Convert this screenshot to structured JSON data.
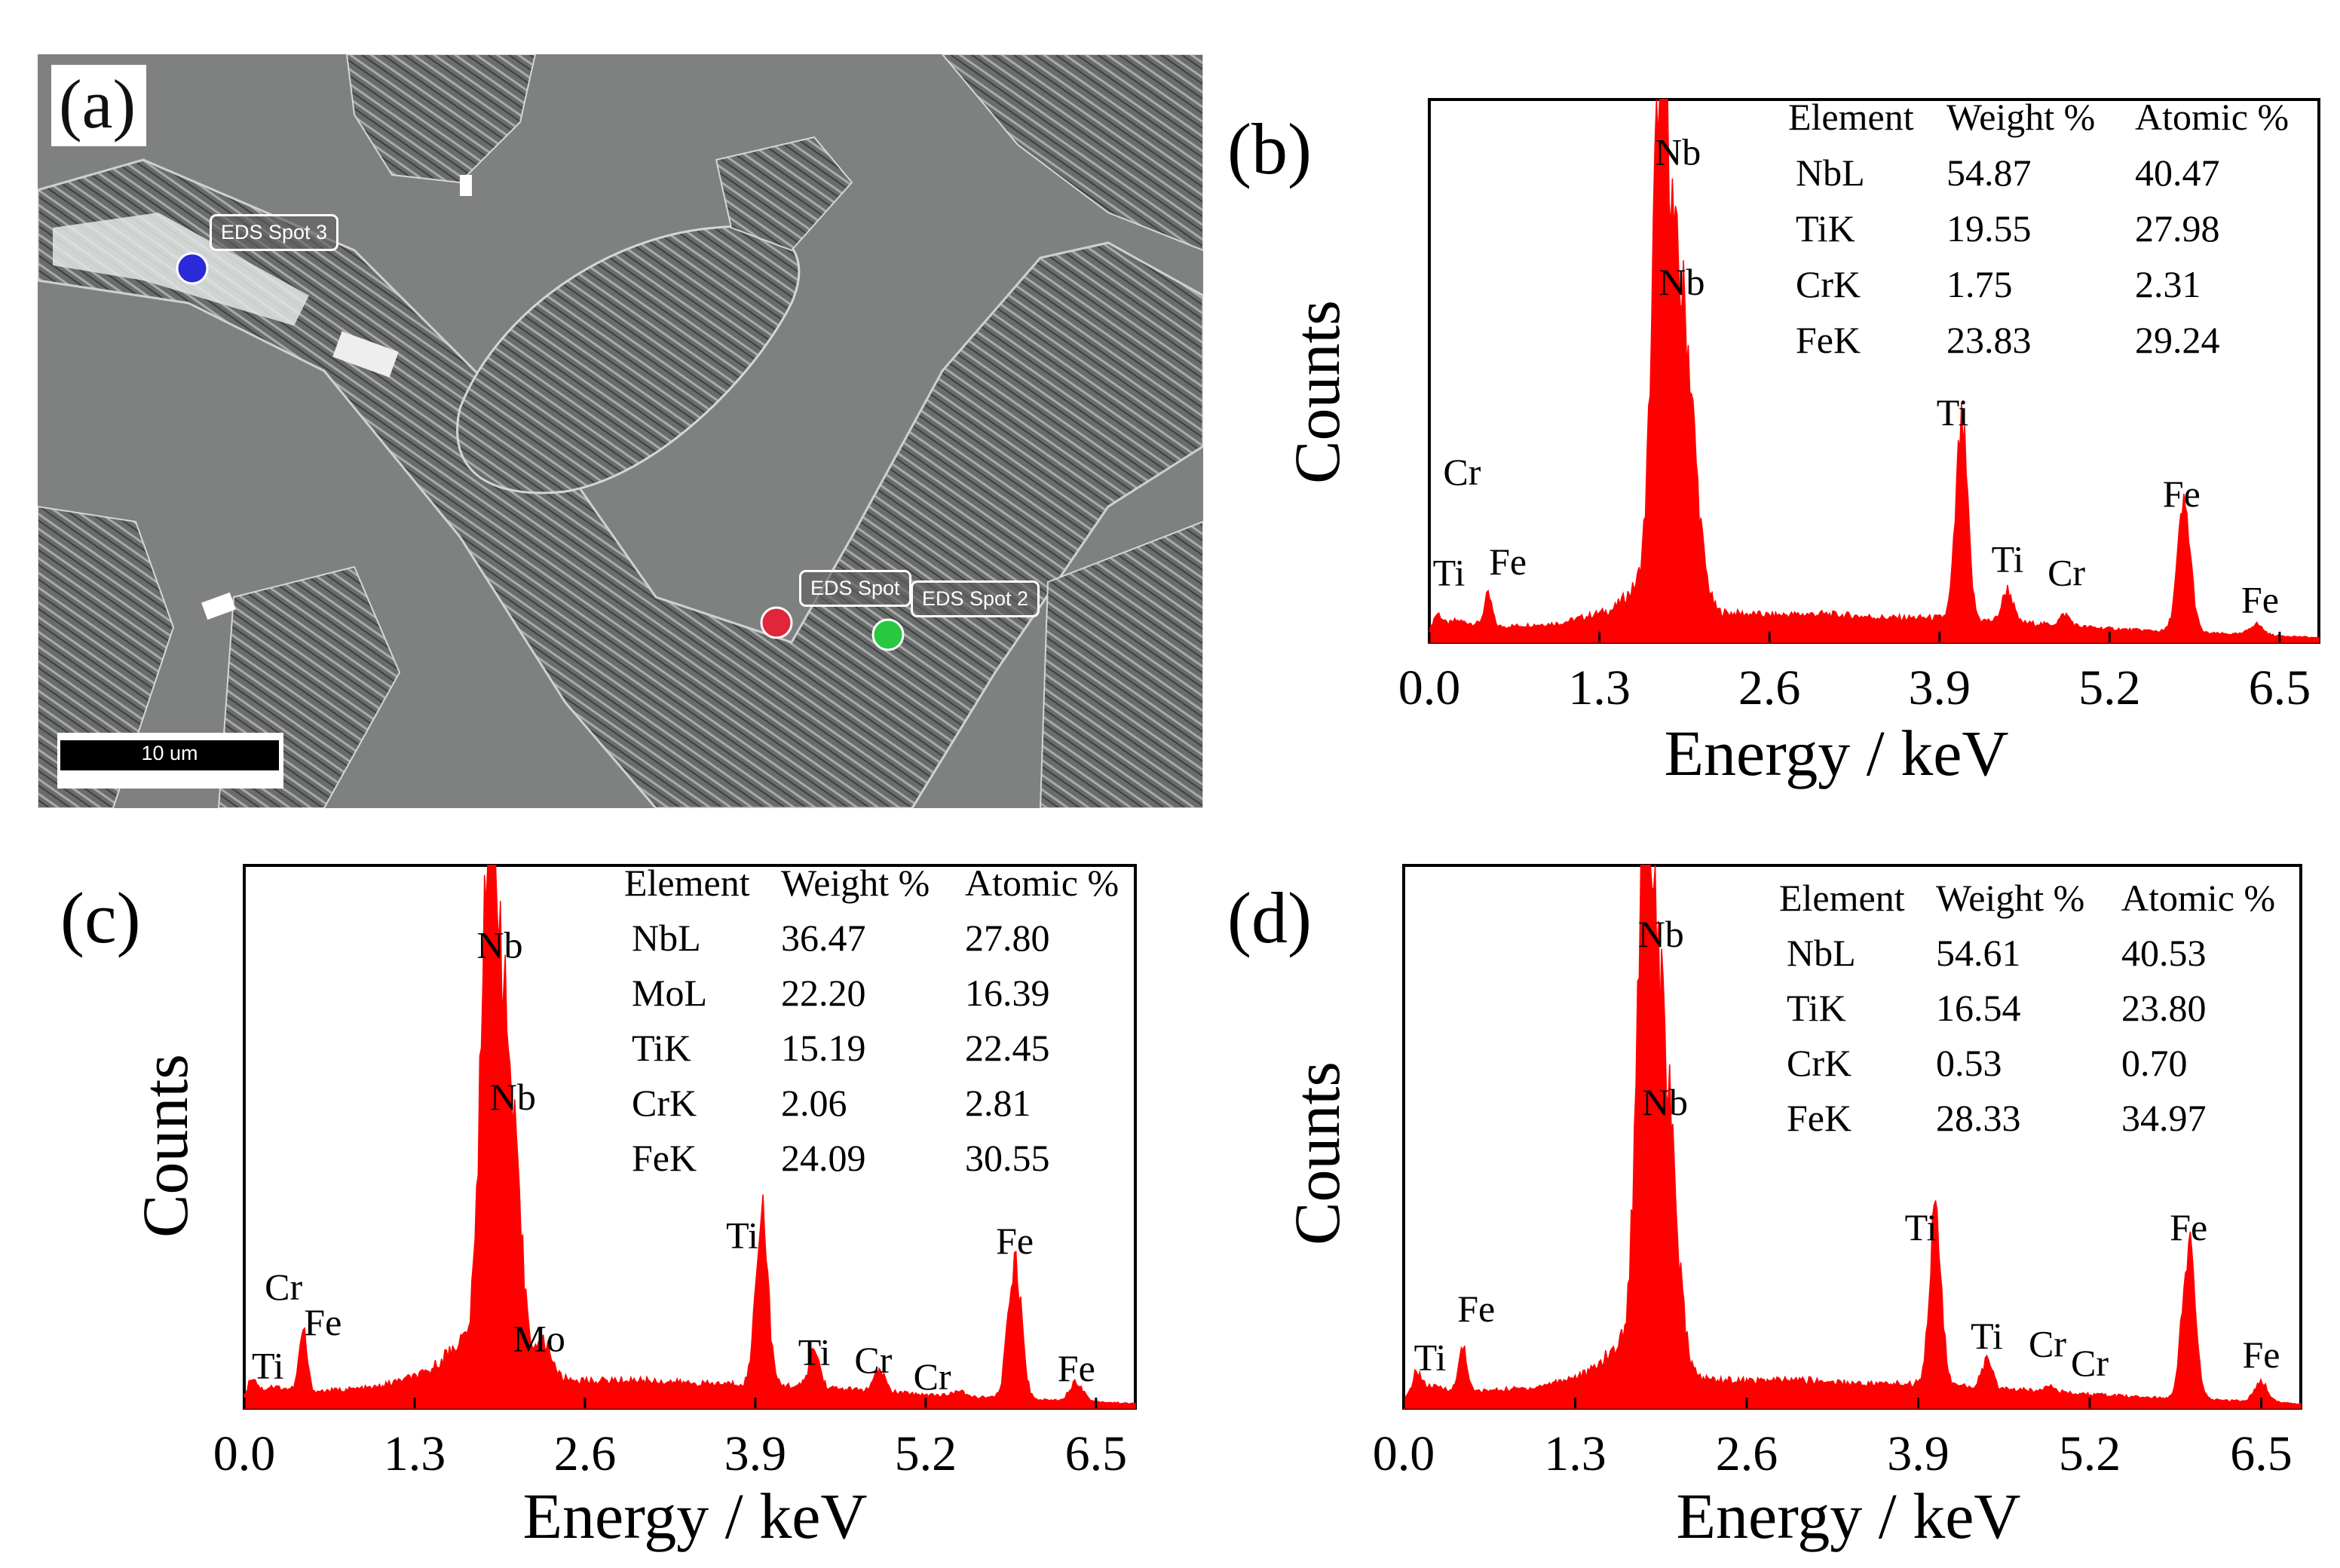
{
  "panel_a": {
    "letter": "(a)",
    "spot_labels": [
      "EDS Spot 3",
      "EDS Spot",
      "EDS Spot 2"
    ],
    "scale_label": "10 um"
  },
  "colors": {
    "spectrum": "#ff0000",
    "axis": "#000000"
  },
  "chart_data": [
    {
      "id": "b",
      "letter": "(b)",
      "type": "area",
      "xlabel": "Energy / keV",
      "ylabel": "Counts",
      "xticks": [
        "0.0",
        "1.3",
        "2.6",
        "3.9",
        "5.2",
        "6.5"
      ],
      "xlim": [
        0,
        6.8
      ],
      "ylim": [
        0,
        1000
      ],
      "table": {
        "headers": [
          "Element",
          "Weight %",
          "Atomic %"
        ],
        "rows": [
          [
            "NbL",
            "54.87",
            "40.47"
          ],
          [
            "TiK",
            "19.55",
            "27.98"
          ],
          [
            "CrK",
            "1.75",
            "2.31"
          ],
          [
            "FeK",
            "23.83",
            "29.24"
          ]
        ]
      },
      "background": [
        [
          0.0,
          15
        ],
        [
          0.2,
          40
        ],
        [
          0.5,
          28
        ],
        [
          1.0,
          35
        ],
        [
          1.4,
          60
        ],
        [
          1.65,
          120
        ],
        [
          1.9,
          110
        ],
        [
          2.2,
          55
        ],
        [
          2.6,
          50
        ],
        [
          3.0,
          52
        ],
        [
          3.5,
          45
        ],
        [
          3.9,
          45
        ],
        [
          4.6,
          35
        ],
        [
          5.2,
          25
        ],
        [
          5.8,
          18
        ],
        [
          6.5,
          12
        ],
        [
          6.8,
          8
        ]
      ],
      "peaks": [
        [
          0.06,
          30,
          0.035
        ],
        [
          0.45,
          55,
          0.03
        ],
        [
          1.77,
          930,
          0.06
        ],
        [
          1.93,
          520,
          0.09
        ],
        [
          4.07,
          350,
          0.045
        ],
        [
          4.42,
          60,
          0.04
        ],
        [
          4.86,
          20,
          0.04
        ],
        [
          5.77,
          230,
          0.05
        ],
        [
          6.32,
          20,
          0.05
        ]
      ],
      "labels": [
        {
          "text": "Nb",
          "x": 1.9,
          "y": 880
        },
        {
          "text": "Nb",
          "x": 1.93,
          "y": 640
        },
        {
          "text": "Cr",
          "x": 0.25,
          "y": 290
        },
        {
          "text": "Ti",
          "x": 0.15,
          "y": 105
        },
        {
          "text": "Fe",
          "x": 0.6,
          "y": 125
        },
        {
          "text": "Ti",
          "x": 4.0,
          "y": 400
        },
        {
          "text": "Ti",
          "x": 4.42,
          "y": 130
        },
        {
          "text": "Cr",
          "x": 4.87,
          "y": 105
        },
        {
          "text": "Fe",
          "x": 5.75,
          "y": 250
        },
        {
          "text": "Fe",
          "x": 6.35,
          "y": 55
        }
      ]
    },
    {
      "id": "c",
      "letter": "(c)",
      "type": "area",
      "xlabel": "Energy / keV",
      "ylabel": "Counts",
      "xticks": [
        "0.0",
        "1.3",
        "2.6",
        "3.9",
        "5.2",
        "6.5"
      ],
      "xlim": [
        0,
        6.8
      ],
      "ylim": [
        0,
        1000
      ],
      "table": {
        "headers": [
          "Element",
          "Weight %",
          "Atomic %"
        ],
        "rows": [
          [
            "NbL",
            "36.47",
            "27.80"
          ],
          [
            "MoL",
            "22.20",
            "16.39"
          ],
          [
            "TiK",
            "15.19",
            "22.45"
          ],
          [
            "CrK",
            "2.06",
            "2.81"
          ],
          [
            "FeK",
            "24.09",
            "30.55"
          ]
        ]
      },
      "background": [
        [
          0.0,
          15
        ],
        [
          0.2,
          40
        ],
        [
          0.5,
          30
        ],
        [
          1.0,
          38
        ],
        [
          1.4,
          65
        ],
        [
          1.65,
          125
        ],
        [
          1.9,
          115
        ],
        [
          2.3,
          58
        ],
        [
          2.6,
          50
        ],
        [
          3.0,
          52
        ],
        [
          3.5,
          45
        ],
        [
          3.9,
          45
        ],
        [
          4.6,
          35
        ],
        [
          5.2,
          25
        ],
        [
          5.8,
          18
        ],
        [
          6.5,
          12
        ],
        [
          6.8,
          8
        ]
      ],
      "peaks": [
        [
          0.06,
          35,
          0.035
        ],
        [
          0.45,
          110,
          0.03
        ],
        [
          1.87,
          910,
          0.06
        ],
        [
          2.0,
          520,
          0.09
        ],
        [
          2.3,
          60,
          0.05
        ],
        [
          3.95,
          330,
          0.045
        ],
        [
          4.35,
          70,
          0.04
        ],
        [
          4.85,
          40,
          0.04
        ],
        [
          5.45,
          10,
          0.04
        ],
        [
          5.88,
          260,
          0.05
        ],
        [
          6.35,
          35,
          0.05
        ]
      ],
      "labels": [
        {
          "text": "Nb",
          "x": 1.95,
          "y": 830
        },
        {
          "text": "Nb",
          "x": 2.05,
          "y": 550
        },
        {
          "text": "Cr",
          "x": 0.3,
          "y": 200
        },
        {
          "text": "Ti",
          "x": 0.18,
          "y": 55
        },
        {
          "text": "Fe",
          "x": 0.6,
          "y": 135
        },
        {
          "text": "Mo",
          "x": 2.25,
          "y": 105
        },
        {
          "text": "Ti",
          "x": 3.8,
          "y": 295
        },
        {
          "text": "Ti",
          "x": 4.35,
          "y": 80
        },
        {
          "text": "Cr",
          "x": 4.8,
          "y": 65
        },
        {
          "text": "Cr",
          "x": 5.25,
          "y": 35
        },
        {
          "text": "Fe",
          "x": 5.88,
          "y": 285
        },
        {
          "text": "Fe",
          "x": 6.35,
          "y": 50
        }
      ]
    },
    {
      "id": "d",
      "letter": "(d)",
      "type": "area",
      "xlabel": "Energy / keV",
      "ylabel": "Counts",
      "xticks": [
        "0.0",
        "1.3",
        "2.6",
        "3.9",
        "5.2",
        "6.5"
      ],
      "xlim": [
        0,
        6.8
      ],
      "ylim": [
        0,
        1000
      ],
      "table": {
        "headers": [
          "Element",
          "Weight %",
          "Atomic %"
        ],
        "rows": [
          [
            "NbL",
            "54.61",
            "40.53"
          ],
          [
            "TiK",
            "16.54",
            "23.80"
          ],
          [
            "CrK",
            "0.53",
            "0.70"
          ],
          [
            "FeK",
            "28.33",
            "34.97"
          ]
        ]
      },
      "background": [
        [
          0.0,
          15
        ],
        [
          0.2,
          40
        ],
        [
          0.5,
          30
        ],
        [
          1.0,
          38
        ],
        [
          1.4,
          65
        ],
        [
          1.65,
          120
        ],
        [
          1.9,
          110
        ],
        [
          2.2,
          55
        ],
        [
          2.6,
          50
        ],
        [
          3.0,
          52
        ],
        [
          3.5,
          45
        ],
        [
          3.9,
          45
        ],
        [
          4.6,
          35
        ],
        [
          5.2,
          25
        ],
        [
          5.8,
          18
        ],
        [
          6.5,
          12
        ],
        [
          6.8,
          8
        ]
      ],
      "peaks": [
        [
          0.1,
          40,
          0.035
        ],
        [
          0.45,
          85,
          0.03
        ],
        [
          1.83,
          900,
          0.06
        ],
        [
          1.96,
          560,
          0.09
        ],
        [
          4.03,
          310,
          0.045
        ],
        [
          4.42,
          50,
          0.04
        ],
        [
          4.9,
          15,
          0.04
        ],
        [
          5.95,
          280,
          0.05
        ],
        [
          6.5,
          35,
          0.05
        ]
      ],
      "labels": [
        {
          "text": "Nb",
          "x": 1.95,
          "y": 850
        },
        {
          "text": "Nb",
          "x": 1.98,
          "y": 540
        },
        {
          "text": "Fe",
          "x": 0.55,
          "y": 160
        },
        {
          "text": "Ti",
          "x": 0.2,
          "y": 70
        },
        {
          "text": "Ti",
          "x": 3.92,
          "y": 310
        },
        {
          "text": "Ti",
          "x": 4.42,
          "y": 110
        },
        {
          "text": "Cr",
          "x": 4.88,
          "y": 95
        },
        {
          "text": "Cr",
          "x": 5.2,
          "y": 60
        },
        {
          "text": "Fe",
          "x": 5.95,
          "y": 310
        },
        {
          "text": "Fe",
          "x": 6.5,
          "y": 75
        }
      ]
    }
  ]
}
